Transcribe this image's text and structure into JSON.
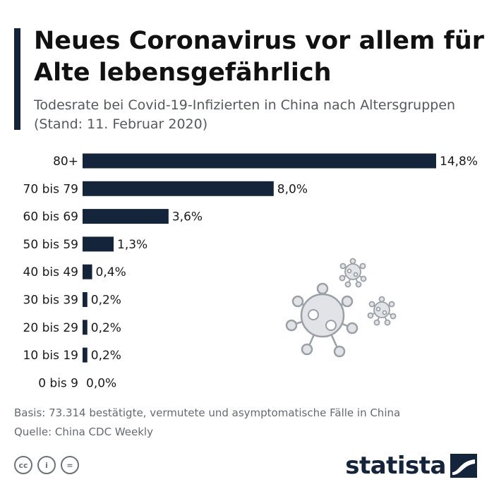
{
  "header": {
    "title": "Neues Coronavirus vor allem für Alte lebensgefährlich",
    "subtitle": "Todesrate bei Covid-19-Infizierten in China nach Altersgruppen (Stand: 11. Februar 2020)"
  },
  "chart_data": {
    "type": "bar",
    "orientation": "horizontal",
    "title": "Neues Coronavirus vor allem für Alte lebensgefährlich",
    "subtitle": "Todesrate bei Covid-19-Infizierten in China nach Altersgruppen (Stand: 11. Februar 2020)",
    "xlabel": "",
    "ylabel": "",
    "unit": "%",
    "categories": [
      "80+",
      "70 bis 79",
      "60 bis 69",
      "50 bis 59",
      "40 bis 49",
      "30 bis 39",
      "20 bis 29",
      "10 bis 19",
      "0 bis 9"
    ],
    "values": [
      14.8,
      8.0,
      3.6,
      1.3,
      0.4,
      0.2,
      0.2,
      0.2,
      0.0
    ],
    "value_labels": [
      "14,8%",
      "8,0%",
      "3,6%",
      "1,3%",
      "0,4%",
      "0,2%",
      "0,2%",
      "0,2%",
      "0,0%"
    ],
    "xlim": [
      0,
      14.8
    ],
    "grid": false,
    "bar_color": "#14243a"
  },
  "footer": {
    "basis": "Basis: 73.314 bestätigte, vermutete und asymptomatische Fälle in China",
    "source": "Quelle: China CDC Weekly",
    "license_icons": [
      "cc-icon",
      "attribution-icon",
      "no-derivatives-icon"
    ],
    "license_cc_text": "cc",
    "license_by_text": "i",
    "license_nd_text": "="
  },
  "brand": {
    "name": "statista"
  }
}
